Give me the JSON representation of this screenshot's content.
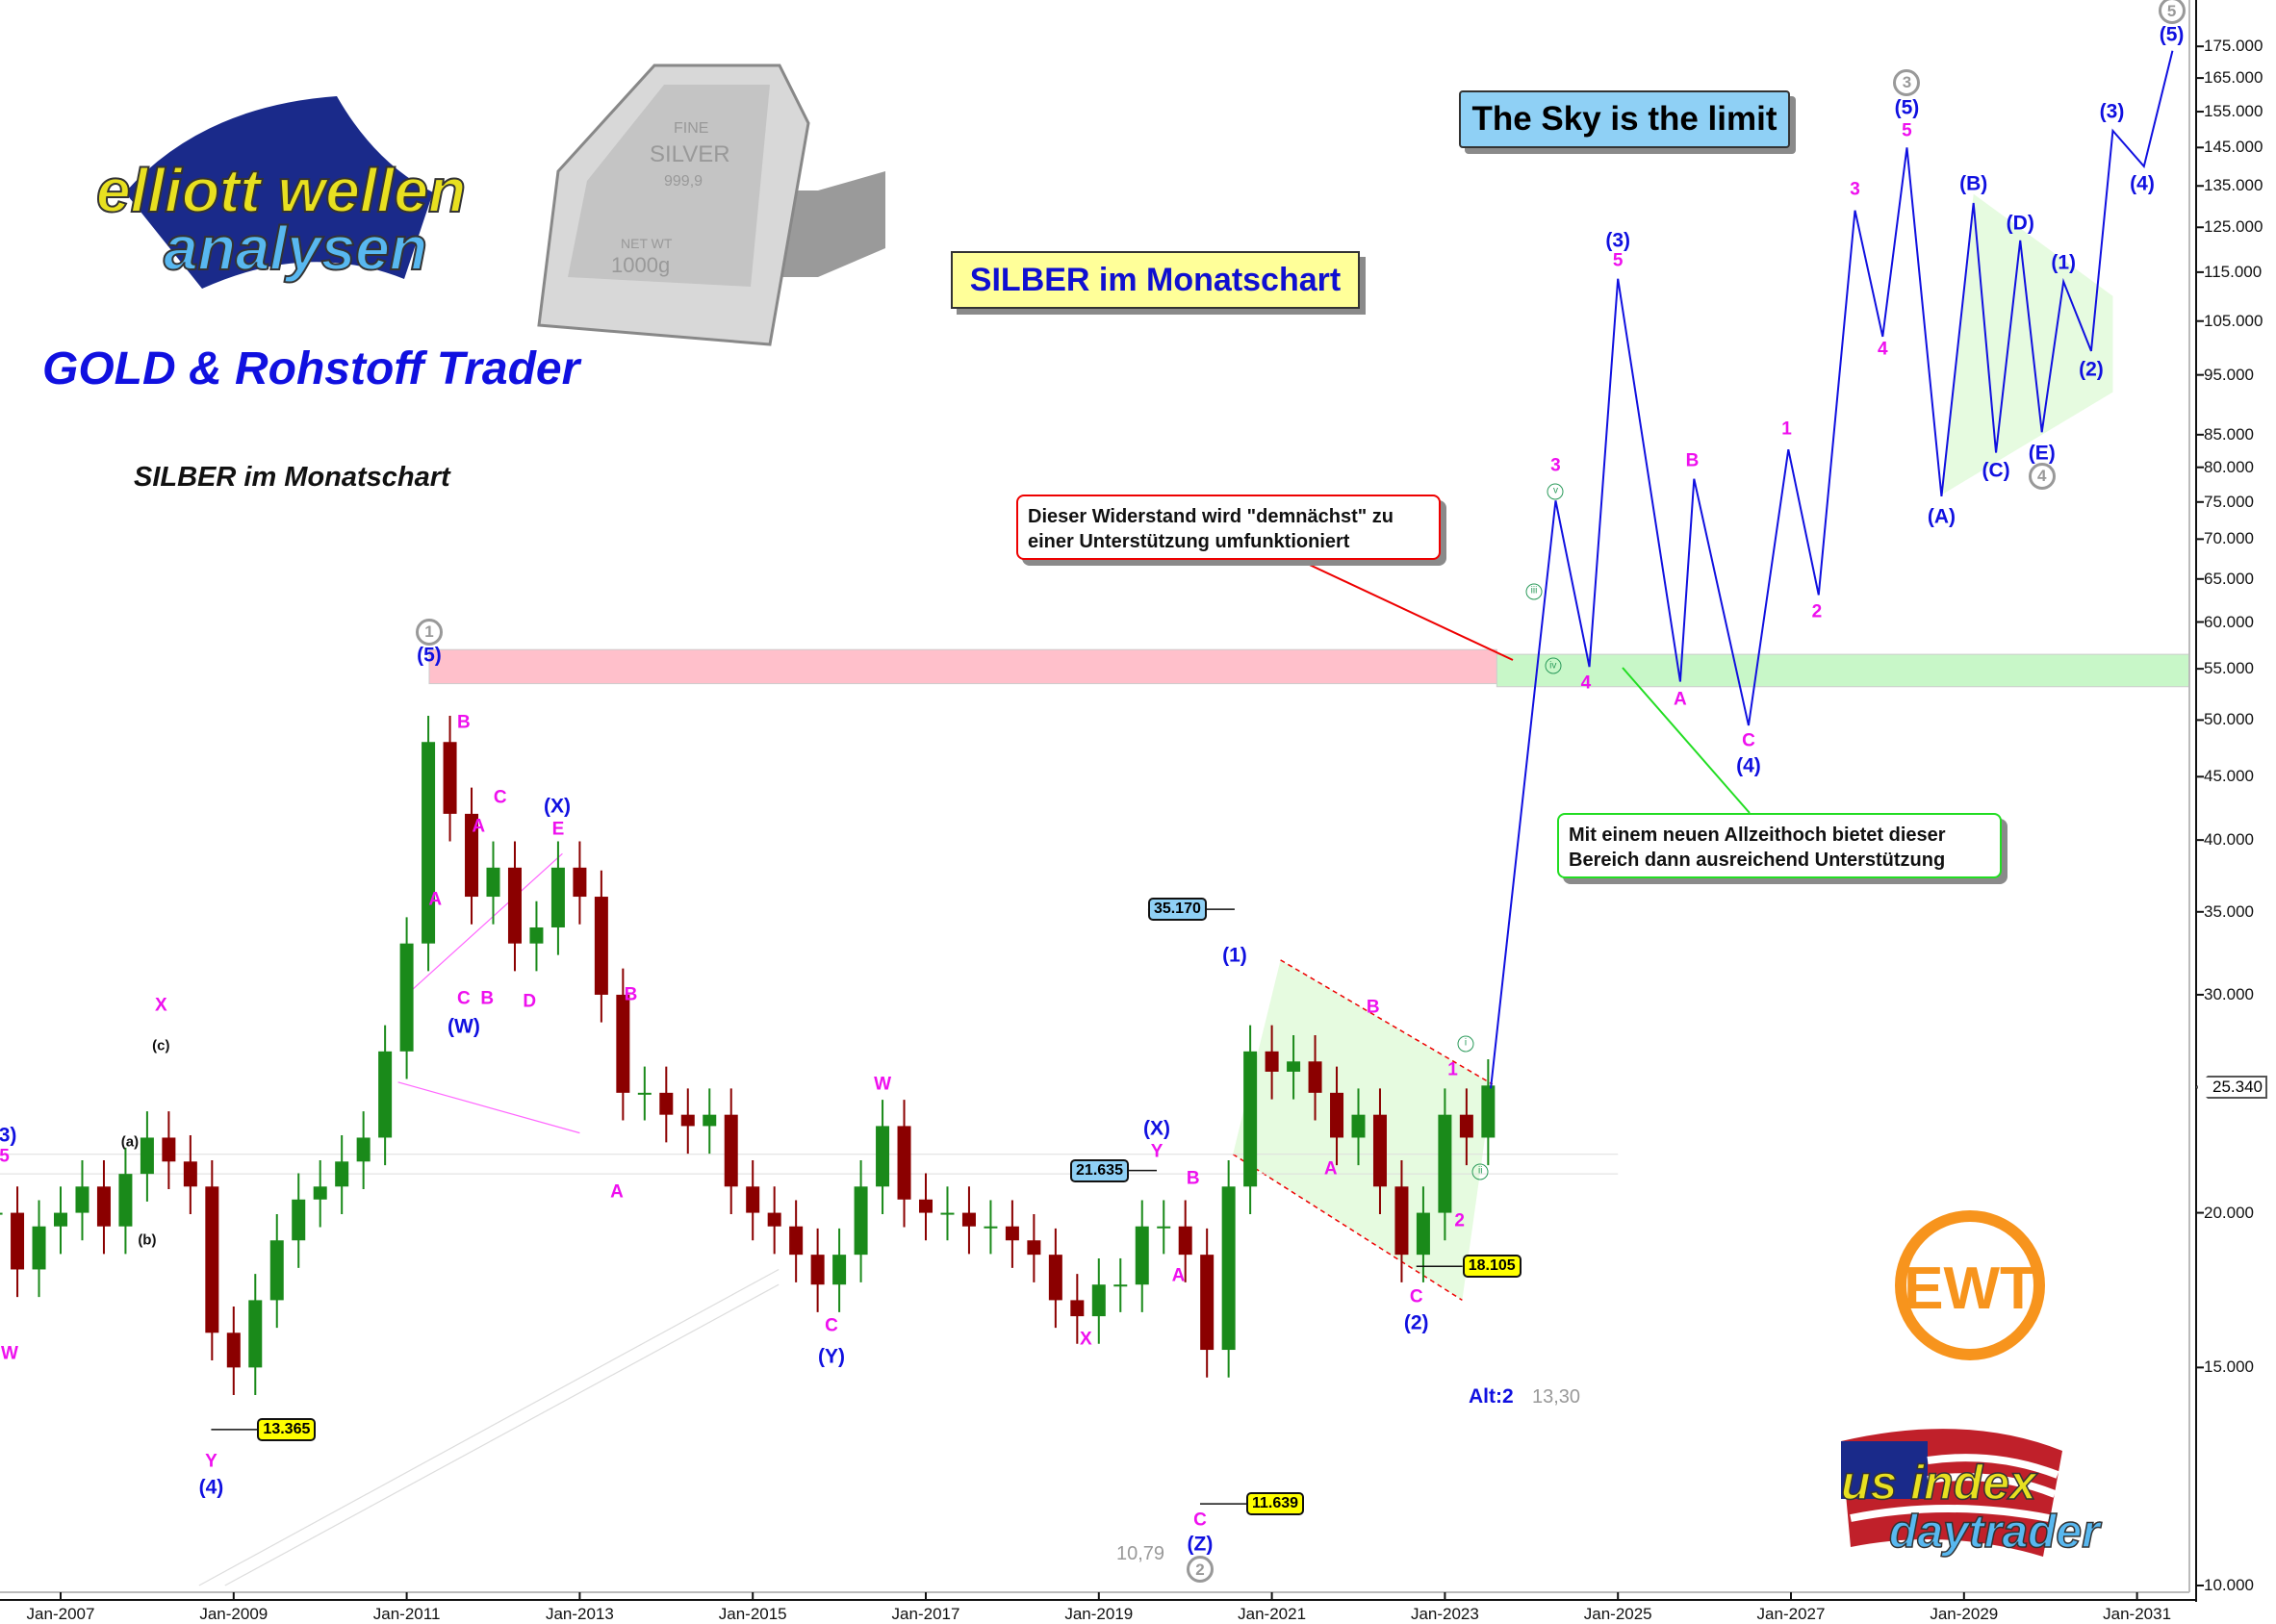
{
  "header": {
    "brand_title": "GOLD & Rohstoff Trader",
    "subtitle": "SILBER im Monatschart",
    "chart_box_title": "SILBER im Monatschart",
    "slogan": "The Sky is the limit"
  },
  "logos": {
    "elliott": {
      "line1": "elliott wellen",
      "line2": "analysen"
    },
    "silver_bar": {
      "line1": "FINE",
      "line2": "SILVER",
      "line3": "999,9",
      "line4": "NET WT",
      "line5": "1000g"
    },
    "ewt": "EWT",
    "usindex": {
      "line1": "us index",
      "line2": "daytrader"
    }
  },
  "callouts": {
    "resistance": "Dieser Widerstand wird \"demnächst\" zu einer Unterstützung umfunktioniert",
    "support": "Mit einem neuen Allzeithoch bietet dieser Bereich dann ausreichend Unterstützung"
  },
  "notes": {
    "alt_label": "Alt:2",
    "alt_value": "13,30",
    "low_value": "10,79"
  },
  "colors": {
    "accent_blue": "#1010e0",
    "wave_magenta": "#ee10ee",
    "candle_up": "#1a8a1a",
    "candle_down": "#8b0000",
    "resistance_zone": "#ffc0cb",
    "support_zone": "#c8f7c8",
    "tag_yellow": "#ffff00",
    "tag_blue": "#8fd0f5"
  },
  "chart_data": {
    "type": "candlestick-with-forecast-line",
    "scale": "log",
    "ylim": [
      10,
      180
    ],
    "xlim": [
      2006.3,
      2031.6
    ],
    "grid": false,
    "yticks": [
      "10.000",
      "15.000",
      "20.000",
      "30.000",
      "35.000",
      "40.000",
      "45.000",
      "50.000",
      "55.000",
      "60.000",
      "65.000",
      "70.000",
      "75.000",
      "80.000",
      "85.000",
      "95.000",
      "105.000",
      "115.000",
      "125.000",
      "135.000",
      "145.000",
      "155.000",
      "165.000",
      "175.000"
    ],
    "xticks": [
      "Jan-2007",
      "Jan-2009",
      "Jan-2011",
      "Jan-2013",
      "Jan-2015",
      "Jan-2017",
      "Jan-2019",
      "Jan-2021",
      "Jan-2023",
      "Jan-2025",
      "Jan-2027",
      "Jan-2029",
      "Jan-2031"
    ],
    "current_price": "25.340",
    "price_history": {
      "start": 2006.25,
      "step": 0.25,
      "closes": [
        20,
        18,
        19.5,
        20,
        21,
        19.5,
        21.5,
        23,
        22,
        21,
        16,
        15,
        17,
        19,
        20.5,
        21,
        22,
        23,
        27,
        33,
        48,
        42,
        36,
        38,
        33,
        34,
        38,
        36,
        30,
        25,
        25,
        24,
        23.5,
        24,
        21,
        20,
        19.5,
        18.5,
        17.5,
        18.5,
        21,
        23.5,
        20.5,
        20,
        20,
        19.5,
        19.5,
        19,
        18.5,
        17,
        16.5,
        17.5,
        17.5,
        19.5,
        19.5,
        18.5,
        15.5,
        21,
        27,
        26,
        26.5,
        25,
        23,
        24,
        21,
        18.5,
        20,
        24,
        23,
        25.34
      ]
    },
    "forecast_path": [
      [
        2023.53,
        25.2
      ],
      [
        2024.28,
        75.2
      ],
      [
        2024.67,
        55.2
      ],
      [
        2025.0,
        113.6
      ],
      [
        2025.72,
        53.7
      ],
      [
        2025.88,
        78.3
      ],
      [
        2026.51,
        49.5
      ],
      [
        2026.97,
        82.7
      ],
      [
        2027.32,
        63.1
      ],
      [
        2027.74,
        129
      ],
      [
        2028.06,
        102
      ],
      [
        2028.34,
        145
      ],
      [
        2028.74,
        75.8
      ],
      [
        2029.11,
        130.8
      ],
      [
        2029.37,
        82.2
      ],
      [
        2029.65,
        122
      ],
      [
        2029.9,
        85.4
      ],
      [
        2030.15,
        113
      ],
      [
        2030.47,
        99.3
      ],
      [
        2030.72,
        149.6
      ],
      [
        2031.08,
        140
      ],
      [
        2031.41,
        173.6
      ]
    ],
    "zones": [
      {
        "name": "resistance",
        "from": 2011.26,
        "to": 2023.6,
        "low": 53.5,
        "high": 57
      },
      {
        "name": "support",
        "from": 2023.6,
        "to": 2031.6,
        "low": 53.2,
        "high": 56.5
      }
    ],
    "price_tags": [
      {
        "text": "13.365",
        "year": 2008.74,
        "price": 13.365,
        "style": "yellow"
      },
      {
        "text": "11.639",
        "year": 2020.17,
        "price": 11.639,
        "style": "yellow"
      },
      {
        "text": "35.170",
        "year": 2020.57,
        "price": 35.17,
        "style": "blue"
      },
      {
        "text": "21.635",
        "year": 2019.67,
        "price": 21.635,
        "style": "blue"
      },
      {
        "text": "18.105",
        "year": 2022.67,
        "price": 18.105,
        "style": "yellow"
      }
    ],
    "wave_labels": [
      {
        "t": "(3)",
        "year": 2006.35,
        "price": 23.1,
        "c": "blue"
      },
      {
        "t": "5",
        "year": 2006.35,
        "price": 22.2,
        "c": "magenta"
      },
      {
        "t": "W",
        "year": 2006.41,
        "price": 15.4,
        "c": "magenta"
      },
      {
        "t": "X",
        "year": 2008.16,
        "price": 29.4,
        "c": "magenta"
      },
      {
        "t": "(c)",
        "year": 2008.16,
        "price": 27.3,
        "c": "black"
      },
      {
        "t": "(a)",
        "year": 2007.8,
        "price": 22.8,
        "c": "black"
      },
      {
        "t": "(b)",
        "year": 2008.0,
        "price": 19.0,
        "c": "black"
      },
      {
        "t": "Y",
        "year": 2008.74,
        "price": 12.6,
        "c": "magenta"
      },
      {
        "t": "(4)",
        "year": 2008.74,
        "price": 12.0,
        "c": "blue"
      },
      {
        "t": "1",
        "year": 2011.26,
        "price": 58.9,
        "c": "gray-circle"
      },
      {
        "t": "(5)",
        "year": 2011.26,
        "price": 56.4,
        "c": "blue"
      },
      {
        "t": "B",
        "year": 2011.66,
        "price": 49.8,
        "c": "magenta"
      },
      {
        "t": "A",
        "year": 2011.83,
        "price": 41,
        "c": "magenta"
      },
      {
        "t": "C",
        "year": 2012.08,
        "price": 43.3,
        "c": "magenta"
      },
      {
        "t": "(X)",
        "year": 2012.74,
        "price": 42.6,
        "c": "blue"
      },
      {
        "t": "E",
        "year": 2012.75,
        "price": 40.8,
        "c": "magenta"
      },
      {
        "t": "A",
        "year": 2011.33,
        "price": 35.8,
        "c": "magenta"
      },
      {
        "t": "C",
        "year": 2011.66,
        "price": 29.8,
        "c": "magenta"
      },
      {
        "t": "B",
        "year": 2011.93,
        "price": 29.8,
        "c": "magenta"
      },
      {
        "t": "D",
        "year": 2012.42,
        "price": 29.6,
        "c": "magenta"
      },
      {
        "t": "(W)",
        "year": 2011.66,
        "price": 28.3,
        "c": "blue"
      },
      {
        "t": "B",
        "year": 2013.59,
        "price": 30,
        "c": "magenta"
      },
      {
        "t": "A",
        "year": 2013.43,
        "price": 20.8,
        "c": "magenta"
      },
      {
        "t": "W",
        "year": 2016.5,
        "price": 25.4,
        "c": "magenta"
      },
      {
        "t": "C",
        "year": 2015.91,
        "price": 16.2,
        "c": "magenta"
      },
      {
        "t": "(Y)",
        "year": 2015.91,
        "price": 15.3,
        "c": "blue"
      },
      {
        "t": "X",
        "year": 2018.85,
        "price": 15.8,
        "c": "magenta"
      },
      {
        "t": "(X)",
        "year": 2019.67,
        "price": 23.4,
        "c": "blue"
      },
      {
        "t": "Y",
        "year": 2019.67,
        "price": 22.4,
        "c": "magenta"
      },
      {
        "t": "B",
        "year": 2020.09,
        "price": 21.3,
        "c": "magenta"
      },
      {
        "t": "A",
        "year": 2019.92,
        "price": 17.8,
        "c": "magenta"
      },
      {
        "t": "C",
        "year": 2020.17,
        "price": 11.3,
        "c": "magenta"
      },
      {
        "t": "(Z)",
        "year": 2020.17,
        "price": 10.8,
        "c": "blue"
      },
      {
        "t": "2",
        "year": 2020.17,
        "price": 10.3,
        "c": "gray-circle"
      },
      {
        "t": "(1)",
        "year": 2020.57,
        "price": 32.3,
        "c": "blue"
      },
      {
        "t": "B",
        "year": 2022.17,
        "price": 29.3,
        "c": "magenta"
      },
      {
        "t": "A",
        "year": 2021.68,
        "price": 21.7,
        "c": "magenta"
      },
      {
        "t": "C",
        "year": 2022.67,
        "price": 17.1,
        "c": "magenta"
      },
      {
        "t": "(2)",
        "year": 2022.67,
        "price": 16.3,
        "c": "blue"
      },
      {
        "t": "1",
        "year": 2023.09,
        "price": 26.1,
        "c": "magenta"
      },
      {
        "t": "2",
        "year": 2023.17,
        "price": 19.7,
        "c": "magenta"
      },
      {
        "t": "i",
        "year": 2023.24,
        "price": 27.4,
        "c": "green-circle"
      },
      {
        "t": "ii",
        "year": 2023.41,
        "price": 21.6,
        "c": "green-circle"
      },
      {
        "t": "iii",
        "year": 2024.03,
        "price": 63.5,
        "c": "green-circle"
      },
      {
        "t": "iv",
        "year": 2024.25,
        "price": 55.3,
        "c": "green-circle"
      },
      {
        "t": "v",
        "year": 2024.28,
        "price": 76.5,
        "c": "green-circle"
      },
      {
        "t": "3",
        "year": 2024.28,
        "price": 80.2,
        "c": "magenta"
      },
      {
        "t": "4",
        "year": 2024.63,
        "price": 53.6,
        "c": "magenta"
      },
      {
        "t": "(3)",
        "year": 2025.0,
        "price": 122,
        "c": "blue"
      },
      {
        "t": "5",
        "year": 2025.0,
        "price": 117.4,
        "c": "magenta"
      },
      {
        "t": "A",
        "year": 2025.72,
        "price": 52,
        "c": "magenta"
      },
      {
        "t": "B",
        "year": 2025.86,
        "price": 81,
        "c": "magenta"
      },
      {
        "t": "C",
        "year": 2026.51,
        "price": 48.1,
        "c": "magenta"
      },
      {
        "t": "(4)",
        "year": 2026.51,
        "price": 45.9,
        "c": "blue"
      },
      {
        "t": "1",
        "year": 2026.95,
        "price": 85.9,
        "c": "magenta"
      },
      {
        "t": "2",
        "year": 2027.3,
        "price": 61.1,
        "c": "magenta"
      },
      {
        "t": "3",
        "year": 2027.74,
        "price": 134,
        "c": "magenta"
      },
      {
        "t": "4",
        "year": 2028.06,
        "price": 99.6,
        "c": "magenta"
      },
      {
        "t": "3",
        "year": 2028.34,
        "price": 163.6,
        "c": "gray-circle"
      },
      {
        "t": "(5)",
        "year": 2028.34,
        "price": 156,
        "c": "blue"
      },
      {
        "t": "5",
        "year": 2028.34,
        "price": 149.6,
        "c": "magenta"
      },
      {
        "t": "(A)",
        "year": 2028.74,
        "price": 73,
        "c": "blue"
      },
      {
        "t": "(B)",
        "year": 2029.11,
        "price": 135.5,
        "c": "blue"
      },
      {
        "t": "(C)",
        "year": 2029.37,
        "price": 79.6,
        "c": "blue"
      },
      {
        "t": "(D)",
        "year": 2029.65,
        "price": 126,
        "c": "blue"
      },
      {
        "t": "(E)",
        "year": 2029.9,
        "price": 82.2,
        "c": "blue"
      },
      {
        "t": "4",
        "year": 2029.9,
        "price": 78.7,
        "c": "gray-circle"
      },
      {
        "t": "(1)",
        "year": 2030.15,
        "price": 117,
        "c": "blue"
      },
      {
        "t": "(2)",
        "year": 2030.47,
        "price": 96,
        "c": "blue"
      },
      {
        "t": "(3)",
        "year": 2030.71,
        "price": 155,
        "c": "blue"
      },
      {
        "t": "(4)",
        "year": 2031.06,
        "price": 135.5,
        "c": "blue"
      },
      {
        "t": "5",
        "year": 2031.4,
        "price": 187,
        "c": "gray-circle"
      },
      {
        "t": "(5)",
        "year": 2031.4,
        "price": 179,
        "c": "blue"
      }
    ]
  }
}
